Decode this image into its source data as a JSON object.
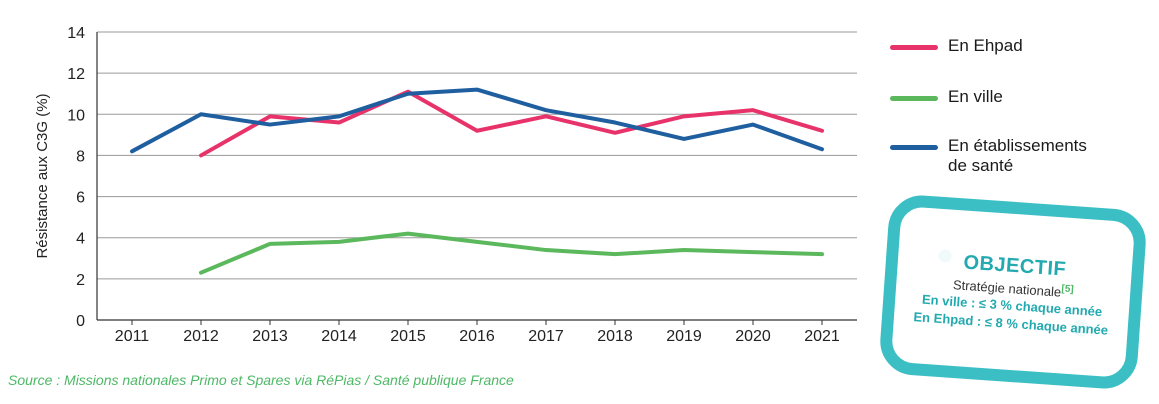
{
  "chart_data": {
    "type": "line",
    "title": "",
    "xlabel": "",
    "ylabel": "Résistance aux C3G (%)",
    "ylim": [
      0,
      14
    ],
    "yticks": [
      0,
      2,
      4,
      6,
      8,
      10,
      12,
      14
    ],
    "x": [
      2011,
      2012,
      2013,
      2014,
      2015,
      2016,
      2017,
      2018,
      2019,
      2020,
      2021
    ],
    "x_tick_labels": [
      "2011",
      "2012",
      "2013",
      "2014",
      "2015",
      "2016",
      "2017",
      "2018",
      "2019",
      "2020",
      "2021"
    ],
    "grid": "horizontal",
    "series": [
      {
        "name": "En Ehpad",
        "color": "#e8336a",
        "values": [
          null,
          8.0,
          9.9,
          9.6,
          11.1,
          9.2,
          9.9,
          9.1,
          9.9,
          10.2,
          9.2
        ]
      },
      {
        "name": "En ville",
        "color": "#5cb85c",
        "values": [
          null,
          2.3,
          3.7,
          3.8,
          4.2,
          3.8,
          3.4,
          3.2,
          3.4,
          3.3,
          3.2
        ]
      },
      {
        "name": "En établissements de santé",
        "color": "#1f5fa0",
        "values": [
          8.2,
          10.0,
          9.5,
          9.9,
          11.0,
          11.2,
          10.2,
          9.6,
          8.8,
          9.5,
          8.3
        ]
      }
    ]
  },
  "legend": {
    "items": [
      {
        "line1": "En Ehpad",
        "line2": ""
      },
      {
        "line1": "En ville",
        "line2": ""
      },
      {
        "line1": "En établissements",
        "line2": "de santé"
      }
    ]
  },
  "objective": {
    "title": "OBJECTIF",
    "subtitle": "Stratégie nationale",
    "ref": "[5]",
    "line1": "En ville : ≤ 3 % chaque année",
    "line2": "En Ehpad : ≤ 8 % chaque année"
  },
  "source": "Source : Missions nationales Primo et Spares via RéPias / Santé publique France"
}
